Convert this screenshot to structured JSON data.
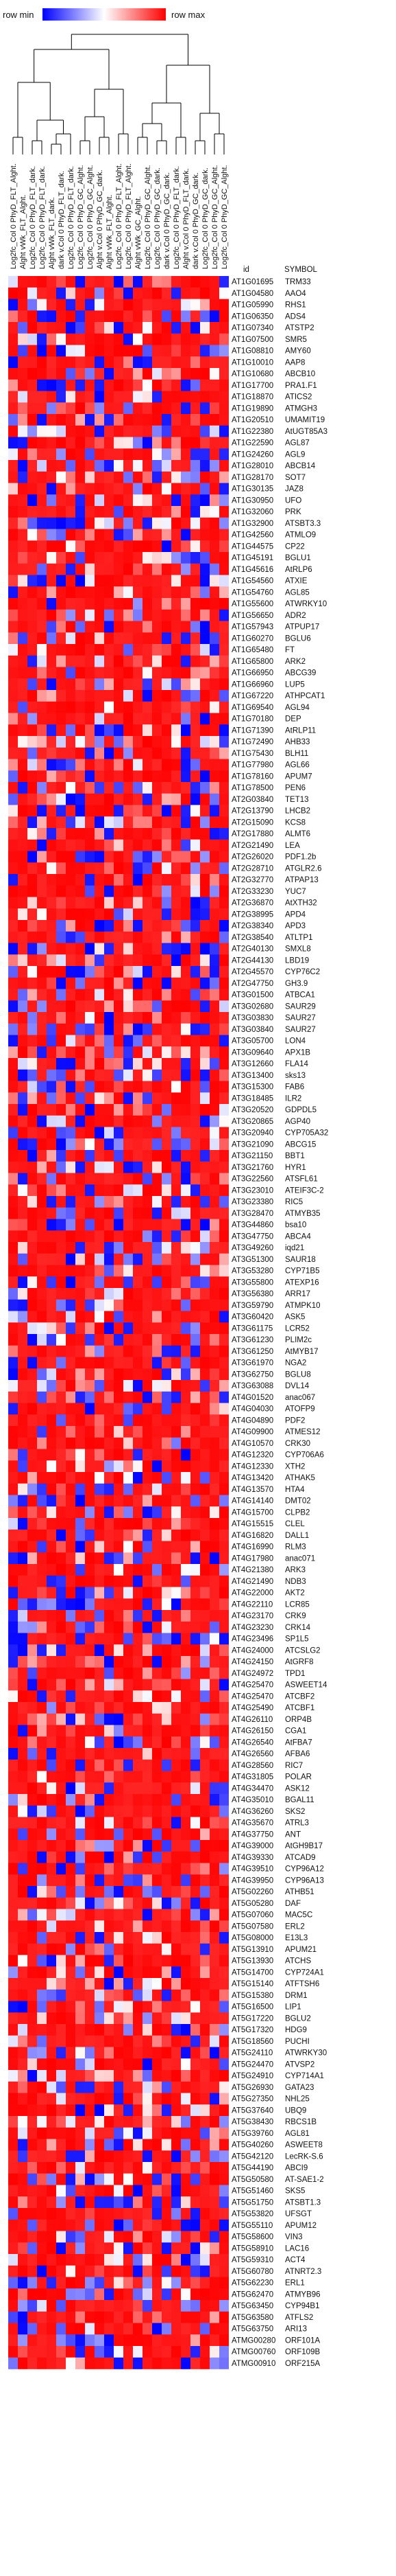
{
  "chart_data": {
    "type": "heatmap",
    "legend": {
      "min_label": "row min",
      "max_label": "row max",
      "colors": [
        "#0000ff",
        "#ffffff",
        "#ff0000"
      ]
    },
    "headers": {
      "id": "id",
      "symbol": "SYMBOL"
    },
    "columns": [
      "Log2fc_Col 0 PhyD_FLT_Alght.",
      "Alght vWk_FLT_Alght.",
      "Log2fc_Col 0 PhyD_FLT_dark.",
      "Log2fc_Col 0 PhyD_FLT_dark.",
      "Alght vWk_FLT_dark.",
      "dark v.Col 0 PhyD_FLT_dark.",
      "Log2fc_Col 0 PhyD_FLT_dark.",
      "Log2fc_Col 0 PhyD_GC_Alght.",
      "Log2fc_Col 0 PhyD_GC_Alght.",
      "Alght v.Col 0 PhyD_GC_dark.",
      "Alght vWk_FLT_Alght.",
      "Log2fc_Col 0 PhyD_FLT_Alght.",
      "Log2fc_Col 0 PhyD_FLT_Alght.",
      "Alght vWk_GC_Alght.",
      "Log2fc_Col 0 PhyD_GC_Alght.",
      "Log2fc_Col 0 PhyD_GC_dark.",
      "dark v.Col 0 PhyD_GC_dark.",
      "Log2fc_Col 0 PhyD_FLT_dark.",
      "Alght v.Col 0 PhyD_FLT_dark.",
      "dark v.Col 0 PhyD_GC_dark.",
      "Log2fc_Col 0 PhyD_GC_dark.",
      "Log2fc_Col 0 PhyD_GC_Alght.",
      "Log2fc_Col 0 PhyD_GC_Alght."
    ],
    "rows": [
      [
        "AT1G01695",
        "TRM33"
      ],
      [
        "AT1G04580",
        "AAO4"
      ],
      [
        "AT1G05990",
        "RHS1"
      ],
      [
        "AT1G06350",
        "ADS4"
      ],
      [
        "AT1G07340",
        "ATSTP2"
      ],
      [
        "AT1G07500",
        "SMR5"
      ],
      [
        "AT1G08810",
        "AMY60"
      ],
      [
        "AT1G10010",
        "AAP8"
      ],
      [
        "AT1G10680",
        "ABCB10"
      ],
      [
        "AT1G17700",
        "PRA1.F1"
      ],
      [
        "AT1G18870",
        "ATICS2"
      ],
      [
        "AT1G19890",
        "ATMGH3"
      ],
      [
        "AT1G20510",
        "UMAMIT19"
      ],
      [
        "AT1G22380",
        "AtUGT85A3"
      ],
      [
        "AT1G22590",
        "AGL87"
      ],
      [
        "AT1G24260",
        "AGL9"
      ],
      [
        "AT1G28010",
        "ABCB14"
      ],
      [
        "AT1G28170",
        "SOT7"
      ],
      [
        "AT1G30135",
        "JAZ8"
      ],
      [
        "AT1G30950",
        "UFO"
      ],
      [
        "AT1G32060",
        "PRK"
      ],
      [
        "AT1G32900",
        "ATSBT3.3"
      ],
      [
        "AT1G42560",
        "ATMLO9"
      ],
      [
        "AT1G44575",
        "CP22"
      ],
      [
        "AT1G45191",
        "BGLU1"
      ],
      [
        "AT1G45616",
        "AtRLP6"
      ],
      [
        "AT1G54560",
        "ATXIE"
      ],
      [
        "AT1G54760",
        "AGL85"
      ],
      [
        "AT1G55600",
        "ATWRKY10"
      ],
      [
        "AT1G56650",
        "ADR2"
      ],
      [
        "AT1G57943",
        "ATPUP17"
      ],
      [
        "AT1G60270",
        "BGLU6"
      ],
      [
        "AT1G65480",
        "FT"
      ],
      [
        "AT1G65800",
        "ARK2"
      ],
      [
        "AT1G66950",
        "ABCG39"
      ],
      [
        "AT1G66960",
        "LUP5"
      ],
      [
        "AT1G67220",
        "ATHPCAT1"
      ],
      [
        "AT1G69540",
        "AGL94"
      ],
      [
        "AT1G70180",
        "DEP"
      ],
      [
        "AT1G71390",
        "AtRLP11"
      ],
      [
        "AT1G72490",
        "AHB33"
      ],
      [
        "AT1G75430",
        "BLH11"
      ],
      [
        "AT1G77980",
        "AGL66"
      ],
      [
        "AT1G78160",
        "APUM7"
      ],
      [
        "AT1G78500",
        "PEN6"
      ],
      [
        "AT2G03840",
        "TET13"
      ],
      [
        "AT2G13790",
        "LHCB2"
      ],
      [
        "AT2G15090",
        "KCS8"
      ],
      [
        "AT2G17880",
        "ALMT6"
      ],
      [
        "AT2G21490",
        "LEA"
      ],
      [
        "AT2G26020",
        "PDF1.2b"
      ],
      [
        "AT2G28710",
        "ATGLR2.6"
      ],
      [
        "AT2G32770",
        "ATPAP13"
      ],
      [
        "AT2G33230",
        "YUC7"
      ],
      [
        "AT2G36870",
        "AtXTH32"
      ],
      [
        "AT2G38995",
        "APD4"
      ],
      [
        "AT2G38340",
        "APD3"
      ],
      [
        "AT2G38540",
        "ATLTP1"
      ],
      [
        "AT2G40130",
        "SMXL8"
      ],
      [
        "AT2G44130",
        "LBD19"
      ],
      [
        "AT2G45570",
        "CYP76C2"
      ],
      [
        "AT2G47750",
        "GH3.9"
      ],
      [
        "AT3G01500",
        "ATBCA1"
      ],
      [
        "AT3G02680",
        "SAUR29"
      ],
      [
        "AT3G03830",
        "SAUR27"
      ],
      [
        "AT3G03840",
        "SAUR27"
      ],
      [
        "AT3G05700",
        "LON4"
      ],
      [
        "AT3G09640",
        "APX1B"
      ],
      [
        "AT3G12660",
        "FLA14"
      ],
      [
        "AT3G13400",
        "sks13"
      ],
      [
        "AT3G15300",
        "FAB6"
      ],
      [
        "AT3G18485",
        "ILR2"
      ],
      [
        "AT3G20520",
        "GDPDL5"
      ],
      [
        "AT3G20865",
        "AGP40"
      ],
      [
        "AT3G20940",
        "CYP705A32"
      ],
      [
        "AT3G21090",
        "ABCG15"
      ],
      [
        "AT3G21150",
        "BBT1"
      ],
      [
        "AT3G21760",
        "HYR1"
      ],
      [
        "AT3G22560",
        "ATSFL61"
      ],
      [
        "AT3G23010",
        "ATEIF3C-2"
      ],
      [
        "AT3G23380",
        "RIC5"
      ],
      [
        "AT3G28470",
        "ATMYB35"
      ],
      [
        "AT3G44860",
        "bsa10"
      ],
      [
        "AT3G47750",
        "ABCA4"
      ],
      [
        "AT3G49260",
        "iqd21"
      ],
      [
        "AT3G51300",
        "SAUR18"
      ],
      [
        "AT3G53280",
        "CYP71B5"
      ],
      [
        "AT3G55800",
        "ATEXP16"
      ],
      [
        "AT3G56380",
        "ARR17"
      ],
      [
        "AT3G59790",
        "ATMPK10"
      ],
      [
        "AT3G60420",
        "ASK5"
      ],
      [
        "AT3G61175",
        "LCR52"
      ],
      [
        "AT3G61230",
        "PLIM2c"
      ],
      [
        "AT3G61250",
        "AtMYB17"
      ],
      [
        "AT3G61970",
        "NGA2"
      ],
      [
        "AT3G62750",
        "BGLU8"
      ],
      [
        "AT3G63088",
        "DVL14"
      ],
      [
        "AT4G01520",
        "anac067"
      ],
      [
        "AT4G04030",
        "ATOFP9"
      ],
      [
        "AT4G04890",
        "PDF2"
      ],
      [
        "AT4G09900",
        "ATMES12"
      ],
      [
        "AT4G10570",
        "CRK30"
      ],
      [
        "AT4G12320",
        "CYP706A6"
      ],
      [
        "AT4G12330",
        "XTH2"
      ],
      [
        "AT4G13420",
        "ATHAK5"
      ],
      [
        "AT4G13570",
        "HTA4"
      ],
      [
        "AT4G14140",
        "DMT02"
      ],
      [
        "AT4G15700",
        "CLPB2"
      ],
      [
        "AT4G15515",
        "CLEL"
      ],
      [
        "AT4G16820",
        "DALL1"
      ],
      [
        "AT4G16990",
        "RLM3"
      ],
      [
        "AT4G17980",
        "anac071"
      ],
      [
        "AT4G21380",
        "ARK3"
      ],
      [
        "AT4G21490",
        "NDB3"
      ],
      [
        "AT4G22000",
        "AKT2"
      ],
      [
        "AT4G22110",
        "LCR85"
      ],
      [
        "AT4G23170",
        "CRK9"
      ],
      [
        "AT4G23230",
        "CRK14"
      ],
      [
        "AT4G23496",
        "SP1L5"
      ],
      [
        "AT4G24000",
        "ATCSLG2"
      ],
      [
        "AT4G24150",
        "AtGRF8"
      ],
      [
        "AT4G24972",
        "TPD1"
      ],
      [
        "AT4G25470",
        "ASWEET14"
      ],
      [
        "AT4G25470",
        "ATCBF2"
      ],
      [
        "AT4G25490",
        "ATCBF1"
      ],
      [
        "AT4G26110",
        "ORP4B"
      ],
      [
        "AT4G26150",
        "CGA1"
      ],
      [
        "AT4G26540",
        "AtFBA7"
      ],
      [
        "AT4G26560",
        "AFBA6"
      ],
      [
        "AT4G28560",
        "RIC7"
      ],
      [
        "AT4G31805",
        "POLAR"
      ],
      [
        "AT4G34470",
        "ASK12"
      ],
      [
        "AT4G35010",
        "BGAL11"
      ],
      [
        "AT4G36260",
        "SKS2"
      ],
      [
        "AT4G35670",
        "ATRL3"
      ],
      [
        "AT4G37750",
        "ANT"
      ],
      [
        "AT4G39000",
        "AtGH9B17"
      ],
      [
        "AT4G39330",
        "ATCAD9"
      ],
      [
        "AT4G39510",
        "CYP96A12"
      ],
      [
        "AT4G39950",
        "CYP96A13"
      ],
      [
        "AT5G02260",
        "ATHB51"
      ],
      [
        "AT5G05280",
        "DAF"
      ],
      [
        "AT5G07060",
        "MAC5C"
      ],
      [
        "AT5G07580",
        "ERL2"
      ],
      [
        "AT5G08000",
        "E13L3"
      ],
      [
        "AT5G13910",
        "APUM21"
      ],
      [
        "AT5G13930",
        "ATCHS"
      ],
      [
        "AT5G14700",
        "CYP724A1"
      ],
      [
        "AT5G15140",
        "ATFTSH6"
      ],
      [
        "AT5G15380",
        "DRM1"
      ],
      [
        "AT5G16500",
        "LIP1"
      ],
      [
        "AT5G17220",
        "BGLU2"
      ],
      [
        "AT5G17320",
        "HDG9"
      ],
      [
        "AT5G18560",
        "PUCHI"
      ],
      [
        "AT5G24110",
        "ATWRKY30"
      ],
      [
        "AT5G24470",
        "ATVSP2"
      ],
      [
        "AT5G24910",
        "CYP714A1"
      ],
      [
        "AT5G26930",
        "GATA23"
      ],
      [
        "AT5G27350",
        "NHL25"
      ],
      [
        "AT5G37640",
        "UBQ9"
      ],
      [
        "AT5G38430",
        "RBCS1B"
      ],
      [
        "AT5G39760",
        "AGL81"
      ],
      [
        "AT5G40260",
        "ASWEET8"
      ],
      [
        "AT5G42120",
        "LecRK-S.6"
      ],
      [
        "AT5G44190",
        "ABCI9"
      ],
      [
        "AT5G50580",
        "AT-SAE1-2"
      ],
      [
        "AT5G51460",
        "SKS5"
      ],
      [
        "AT5G51750",
        "ATSBT1.3"
      ],
      [
        "AT5G53820",
        "UFSGT"
      ],
      [
        "AT5G55110",
        "APUM12"
      ],
      [
        "AT5G58600",
        "VIN3"
      ],
      [
        "AT5G58910",
        "LAC16"
      ],
      [
        "AT5G59310",
        "ACT4"
      ],
      [
        "AT5G60780",
        "ATNRT2.3"
      ],
      [
        "AT5G62230",
        "ERL1"
      ],
      [
        "AT5G62470",
        "ATMYB96"
      ],
      [
        "AT5G63450",
        "CYP94B1"
      ],
      [
        "AT5G63580",
        "ATFLS2"
      ],
      [
        "AT5G63750",
        "ARI13"
      ],
      [
        "ATMG00280",
        "ORF101A"
      ],
      [
        "ATMG00760",
        "ORF109B"
      ],
      [
        "ATMG00910",
        "ORF215A"
      ]
    ]
  }
}
